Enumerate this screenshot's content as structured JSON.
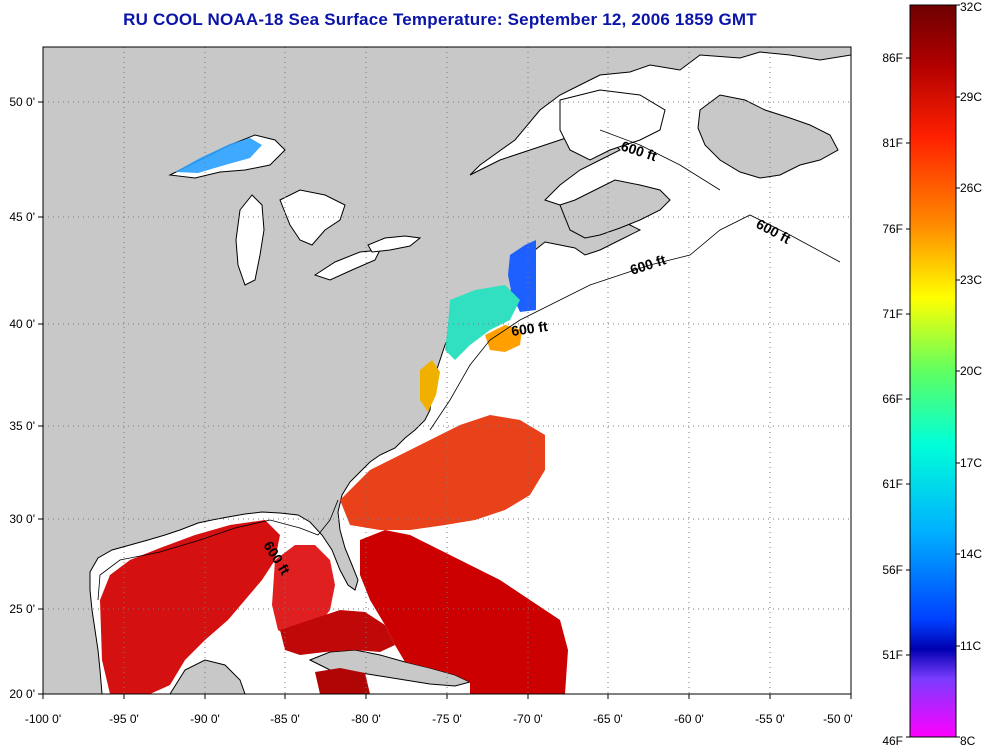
{
  "title": "RU COOL  NOAA-18  Sea Surface Temperature:  September 12, 2006 1859 GMT",
  "map": {
    "lon_ticks": [
      "-100 0'",
      "-95 0'",
      "-90 0'",
      "-85 0'",
      "-80 0'",
      "-75 0'",
      "-70 0'",
      "-65 0'",
      "-60 0'",
      "-55 0'",
      "-50 0'"
    ],
    "lat_ticks": [
      "20 0'",
      "25 0'",
      "30 0'",
      "35 0'",
      "40 0'",
      "45 0'",
      "50 0'"
    ],
    "lon_range": [
      -100,
      -50
    ],
    "lat_range": [
      20,
      52.5
    ],
    "depth_contour_labels": [
      "600 ft",
      "600 ft",
      "600 ft",
      "600 ft",
      "600 ft"
    ],
    "colors": {
      "land": "#c8c8c8",
      "ocean_no_data": "#ffffff",
      "coast": "#000000"
    }
  },
  "colorbar": {
    "celsius_labels": [
      "32C",
      "29C",
      "26C",
      "23C",
      "20C",
      "17C",
      "14C",
      "11C",
      "8C"
    ],
    "fahrenheit_labels": [
      "86F",
      "81F",
      "76F",
      "71F",
      "66F",
      "61F",
      "56F",
      "51F",
      "46F"
    ],
    "colors_top_to_bottom": [
      "#6e0000",
      "#c80000",
      "#ff3000",
      "#ff9000",
      "#ffff00",
      "#80ff40",
      "#00ffc0",
      "#00c0ff",
      "#0040ff",
      "#0000c0",
      "#8000ff",
      "#ff00ff"
    ]
  }
}
